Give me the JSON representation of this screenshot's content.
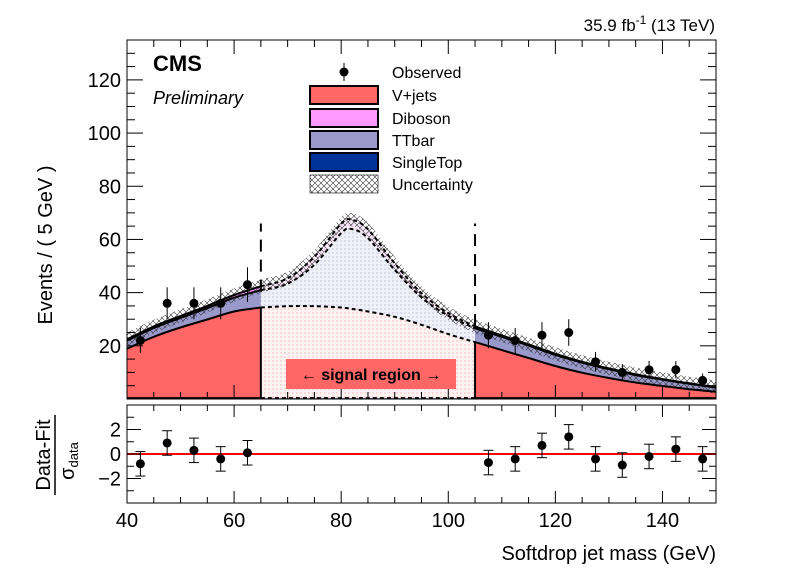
{
  "header": {
    "experiment": "CMS",
    "status": "Preliminary",
    "lumi": "35.9 fb",
    "lumi_exp": "-1",
    "energy": " (13 TeV)"
  },
  "signal_region_label": "← signal region →",
  "colors": {
    "vjets": "#ff6666",
    "diboson": "#ff99ff",
    "ttbar": "#9999cc",
    "singletop": "#003399",
    "data": "#000000",
    "ratio_line": "#ff0000"
  },
  "chart_data": [
    {
      "type": "area",
      "title": "",
      "xlabel": "Softdrop jet mass (GeV)",
      "ylabel": "Events / ( 5 GeV )",
      "xlim": [
        40,
        150
      ],
      "ylim": [
        0,
        135
      ],
      "x_ticks": [
        40,
        60,
        80,
        100,
        120,
        140
      ],
      "y_ticks": [
        20,
        40,
        60,
        80,
        100,
        120
      ],
      "legend_position": "top-center",
      "legend": [
        "Observed",
        "V+jets",
        "Diboson",
        "TTbar",
        "SingleTop",
        "Uncertainty"
      ],
      "signal_region": [
        65,
        105
      ],
      "fit_x": [
        40,
        45,
        50,
        55,
        60,
        65,
        70,
        75,
        80,
        82,
        85,
        90,
        95,
        100,
        105,
        110,
        115,
        120,
        125,
        130,
        135,
        140,
        145,
        150
      ],
      "stack_series": [
        {
          "name": "SingleTop",
          "values": [
            0.4,
            0.4,
            0.4,
            0.4,
            0.4,
            0.4,
            0.4,
            0.4,
            0.4,
            0.4,
            0.4,
            0.4,
            0.4,
            0.4,
            0.4,
            0.4,
            0.4,
            0.4,
            0.4,
            0.4,
            0.4,
            0.4,
            0.4,
            0.4
          ]
        },
        {
          "name": "V+jets",
          "values": [
            18.5,
            23,
            26.5,
            29.5,
            32.5,
            34,
            34.5,
            34.5,
            34,
            33.5,
            32.5,
            30.5,
            27.5,
            24,
            21,
            18,
            15,
            12,
            9.5,
            7.5,
            5.8,
            4.5,
            3.3,
            2.3
          ]
        },
        {
          "name": "TTbar",
          "values": [
            3,
            3.3,
            3.6,
            4.3,
            5.2,
            6.5,
            8.5,
            15.6,
            28,
            30,
            27.6,
            17.6,
            10.3,
            6.9,
            5.2,
            5,
            4.7,
            4.2,
            3.8,
            3.3,
            2.8,
            2.4,
            2,
            1.6
          ]
        },
        {
          "name": "Diboson",
          "values": [
            0.5,
            0.6,
            0.7,
            0.8,
            1,
            1.5,
            2,
            3,
            3.5,
            3.5,
            3.3,
            2.5,
            1.6,
            1,
            0.7,
            0.5,
            0.4,
            0.4,
            0.3,
            0.3,
            0.3,
            0.2,
            0.2,
            0.2
          ]
        }
      ],
      "uncertainty_band": 2.5,
      "observed": {
        "x": [
          42.5,
          47.5,
          52.5,
          57.5,
          62.5,
          107.5,
          112.5,
          117.5,
          122.5,
          127.5,
          132.5,
          137.5,
          142.5,
          147.5
        ],
        "y": [
          22,
          36,
          36,
          36,
          43,
          24,
          22,
          24,
          25,
          14,
          10,
          11,
          11,
          7
        ],
        "err": [
          4.7,
          6,
          6,
          6,
          6.5,
          4.9,
          4.7,
          4.9,
          5,
          3.7,
          3.2,
          3.3,
          3.3,
          2.6
        ]
      }
    },
    {
      "type": "scatter",
      "xlabel": "Softdrop jet mass (GeV)",
      "ylabel": "Data-Fit / σdata",
      "xlim": [
        40,
        150
      ],
      "ylim": [
        -4,
        4
      ],
      "x_ticks": [
        40,
        60,
        80,
        100,
        120,
        140
      ],
      "y_ticks": [
        -2,
        0,
        2
      ],
      "y_tick_labels": [
        "−2",
        "0",
        "2"
      ],
      "reference_line": 0,
      "x": [
        42.5,
        47.5,
        52.5,
        57.5,
        62.5,
        107.5,
        112.5,
        117.5,
        122.5,
        127.5,
        132.5,
        137.5,
        142.5,
        147.5
      ],
      "y": [
        -0.8,
        0.9,
        0.3,
        -0.4,
        0.1,
        -0.7,
        -0.4,
        0.7,
        1.4,
        -0.4,
        -0.9,
        -0.2,
        0.4,
        -0.4
      ],
      "err": [
        1,
        1,
        1,
        1,
        1,
        1,
        1,
        1,
        1,
        1,
        1,
        1,
        1,
        1
      ]
    }
  ]
}
